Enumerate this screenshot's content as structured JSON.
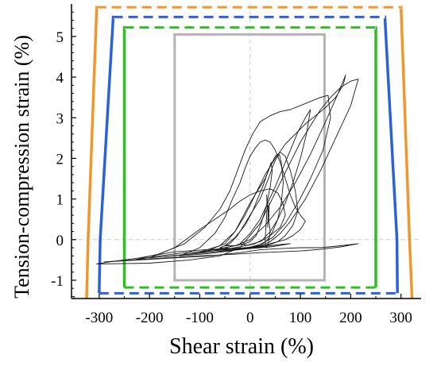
{
  "chart_data": {
    "type": "line",
    "xlabel": "Shear strain (%)",
    "ylabel": "Tension-compression strain (%)",
    "xlim": [
      -355,
      340
    ],
    "ylim": [
      -1.45,
      5.8
    ],
    "x_ticks": [
      -300,
      -200,
      -100,
      0,
      100,
      200,
      300
    ],
    "x_tick_labels": [
      "-300",
      "-200",
      "-100",
      "0",
      "100",
      "200",
      "300"
    ],
    "y_ticks": [
      -1,
      0,
      1,
      2,
      3,
      4,
      5
    ],
    "y_tick_labels": [
      "-1",
      "0",
      "1",
      "2",
      "3",
      "4",
      "5"
    ],
    "zero_gridlines": true,
    "colors": {
      "orange": "#f0962d",
      "blue": "#2b62d9",
      "green": "#2fbf24",
      "gray": "#b3b3b3",
      "hysteresis": "#1a1a1a"
    },
    "envelopes": [
      {
        "color": "orange",
        "points": [
          [
            -325,
            -1.45
          ],
          [
            -322,
            0
          ],
          [
            -305,
            5.72
          ],
          [
            300,
            5.72
          ],
          [
            317,
            0
          ],
          [
            322,
            -1.45
          ]
        ],
        "closing_style": "dashed-top"
      },
      {
        "color": "blue",
        "points": [
          [
            -300,
            -1.32
          ],
          [
            -298,
            0
          ],
          [
            -272,
            5.48
          ],
          [
            268,
            5.48
          ],
          [
            292,
            0
          ],
          [
            293,
            -1.32
          ]
        ],
        "closing_style": "dashed-top-bottom"
      },
      {
        "color": "green",
        "points": [
          [
            -250,
            -1.18
          ],
          [
            -250,
            5.22
          ],
          [
            250,
            5.22
          ],
          [
            250,
            -1.18
          ]
        ],
        "closing_style": "dashed-top-bottom"
      },
      {
        "color": "gray",
        "points": [
          [
            -150,
            -1.0
          ],
          [
            -150,
            5.05
          ],
          [
            148,
            5.05
          ],
          [
            148,
            -1.0
          ]
        ],
        "closing_style": "solid"
      }
    ],
    "hysteresis_series": [
      {
        "x": [
          -305,
          -200,
          -120,
          -60,
          -20,
          0,
          20,
          40,
          60,
          80,
          100,
          120,
          140,
          160,
          180,
          200,
          215,
          200,
          170,
          140,
          110,
          80,
          60,
          40,
          20,
          0,
          -40,
          -90,
          -150,
          -220,
          -280,
          -305
        ],
        "y": [
          -0.6,
          -0.58,
          -0.5,
          -0.4,
          -0.2,
          0.1,
          0.4,
          0.9,
          1.4,
          1.9,
          2.4,
          2.8,
          3.2,
          3.5,
          3.75,
          3.9,
          3.95,
          3.3,
          2.5,
          1.7,
          1.0,
          0.45,
          0.15,
          -0.05,
          -0.15,
          -0.2,
          -0.22,
          -0.25,
          -0.3,
          -0.45,
          -0.55,
          -0.6
        ]
      },
      {
        "x": [
          -230,
          -180,
          -130,
          -90,
          -60,
          -40,
          -25,
          -10,
          5,
          20,
          40,
          60,
          80,
          100,
          120,
          140,
          155,
          160,
          145,
          120,
          95,
          70,
          45,
          20,
          -5,
          -40,
          -80,
          -130,
          -180,
          -230
        ],
        "y": [
          -0.5,
          -0.35,
          -0.1,
          0.3,
          0.75,
          1.2,
          1.7,
          2.2,
          2.6,
          2.9,
          3.05,
          3.15,
          3.2,
          3.3,
          3.4,
          3.5,
          3.55,
          3.0,
          2.2,
          1.5,
          0.9,
          0.4,
          0.05,
          -0.12,
          -0.2,
          -0.25,
          -0.28,
          -0.32,
          -0.4,
          -0.5
        ]
      },
      {
        "x": [
          -100,
          -60,
          -30,
          -10,
          10,
          30,
          50,
          70,
          90,
          110,
          130,
          150,
          170,
          185,
          190,
          175,
          150,
          120,
          90,
          60,
          30,
          0,
          -30,
          -60,
          -100
        ],
        "y": [
          -0.3,
          -0.15,
          0.2,
          0.6,
          1.1,
          1.6,
          2.0,
          2.35,
          2.6,
          2.85,
          3.05,
          3.25,
          3.5,
          3.8,
          4.05,
          3.6,
          2.9,
          2.1,
          1.4,
          0.8,
          0.35,
          0.0,
          -0.15,
          -0.22,
          -0.3
        ]
      },
      {
        "x": [
          -140,
          -100,
          -70,
          -50,
          -35,
          -20,
          -10,
          0,
          10,
          20,
          30,
          40,
          50,
          60,
          70,
          80,
          90,
          100,
          110,
          100,
          85,
          70,
          55,
          40,
          25,
          10,
          -10,
          -40,
          -80,
          -140
        ],
        "y": [
          -0.4,
          -0.2,
          0.15,
          0.55,
          1.0,
          1.4,
          1.75,
          2.05,
          2.25,
          2.4,
          2.45,
          2.4,
          2.2,
          1.9,
          1.5,
          1.1,
          0.8,
          0.6,
          0.45,
          0.25,
          0.1,
          0.0,
          -0.05,
          -0.1,
          -0.15,
          -0.18,
          -0.22,
          -0.28,
          -0.34,
          -0.4
        ]
      },
      {
        "x": [
          -80,
          -50,
          -30,
          -15,
          0,
          15,
          30,
          40,
          50,
          60,
          70,
          80,
          90,
          95,
          85,
          70,
          55,
          40,
          25,
          10,
          -10,
          -30,
          -55,
          -80
        ],
        "y": [
          -0.25,
          -0.1,
          0.2,
          0.55,
          0.9,
          1.2,
          1.5,
          1.8,
          2.05,
          2.15,
          2.05,
          1.7,
          1.2,
          0.7,
          0.35,
          0.1,
          -0.05,
          -0.12,
          -0.16,
          -0.2,
          -0.22,
          -0.24,
          -0.25,
          -0.25
        ]
      },
      {
        "x": [
          -60,
          -40,
          -25,
          -10,
          5,
          20,
          30,
          38,
          45,
          52,
          58,
          62,
          66,
          62,
          55,
          45,
          35,
          25,
          15,
          5,
          -10,
          -30,
          -60
        ],
        "y": [
          -0.2,
          -0.1,
          0.1,
          0.4,
          0.7,
          1.0,
          1.3,
          1.55,
          1.8,
          2.0,
          2.1,
          1.9,
          1.4,
          0.9,
          0.5,
          0.2,
          0.0,
          -0.1,
          -0.15,
          -0.18,
          -0.2,
          -0.22,
          -0.2
        ]
      },
      {
        "x": [
          -200,
          -150,
          -100,
          -70,
          -40,
          -20,
          0,
          20,
          40,
          55,
          65,
          70,
          60,
          40,
          20,
          0,
          -20,
          -50,
          -90,
          -140,
          -200
        ],
        "y": [
          -0.45,
          -0.2,
          0.25,
          0.5,
          0.75,
          0.95,
          1.1,
          1.2,
          1.25,
          1.15,
          0.9,
          0.6,
          0.3,
          0.1,
          -0.05,
          -0.12,
          -0.18,
          -0.24,
          -0.3,
          -0.38,
          -0.45
        ]
      },
      {
        "x": [
          -50,
          -30,
          -10,
          5,
          15,
          25,
          32,
          38,
          42,
          44,
          40,
          32,
          22,
          12,
          0,
          -15,
          -30,
          -50
        ],
        "y": [
          -0.15,
          0.05,
          0.35,
          0.7,
          1.0,
          1.3,
          1.55,
          1.75,
          1.9,
          1.7,
          1.3,
          0.8,
          0.4,
          0.1,
          -0.05,
          -0.12,
          -0.15,
          -0.15
        ]
      },
      {
        "x": [
          30,
          32,
          34,
          33,
          36,
          35,
          38,
          37,
          40,
          36,
          33,
          31,
          30
        ],
        "y": [
          0.0,
          0.4,
          0.8,
          1.1,
          0.7,
          0.3,
          0.9,
          0.5,
          0.2,
          -0.1,
          -0.2,
          -0.15,
          0.0
        ]
      },
      {
        "x": [
          -20,
          0,
          20,
          35,
          50,
          65,
          80,
          95,
          110,
          120,
          112,
          100,
          85,
          70,
          55,
          40,
          25,
          10,
          -5,
          -20
        ],
        "y": [
          -0.1,
          0.15,
          0.5,
          0.9,
          1.3,
          1.75,
          2.2,
          2.65,
          3.0,
          3.2,
          2.6,
          2.0,
          1.4,
          0.9,
          0.5,
          0.2,
          0.0,
          -0.1,
          -0.14,
          -0.1
        ]
      },
      {
        "x": [
          -290,
          -220,
          -150,
          -80,
          -20,
          20,
          60,
          100,
          140,
          180,
          215,
          180,
          140,
          100,
          60,
          20,
          -30,
          -100,
          -180,
          -260,
          -290
        ],
        "y": [
          -0.55,
          -0.5,
          -0.45,
          -0.4,
          -0.32,
          -0.25,
          -0.22,
          -0.2,
          -0.2,
          -0.15,
          -0.1,
          -0.18,
          -0.24,
          -0.28,
          -0.3,
          -0.32,
          -0.36,
          -0.4,
          -0.46,
          -0.52,
          -0.55
        ]
      },
      {
        "x": [
          -170,
          -120,
          -70,
          -30,
          0,
          20,
          40,
          60,
          80,
          60,
          40,
          20,
          0,
          -30,
          -70,
          -120,
          -170
        ],
        "y": [
          -0.42,
          -0.36,
          -0.3,
          -0.25,
          -0.22,
          -0.18,
          -0.15,
          -0.12,
          -0.1,
          -0.14,
          -0.18,
          -0.2,
          -0.22,
          -0.26,
          -0.3,
          -0.36,
          -0.42
        ]
      }
    ]
  }
}
